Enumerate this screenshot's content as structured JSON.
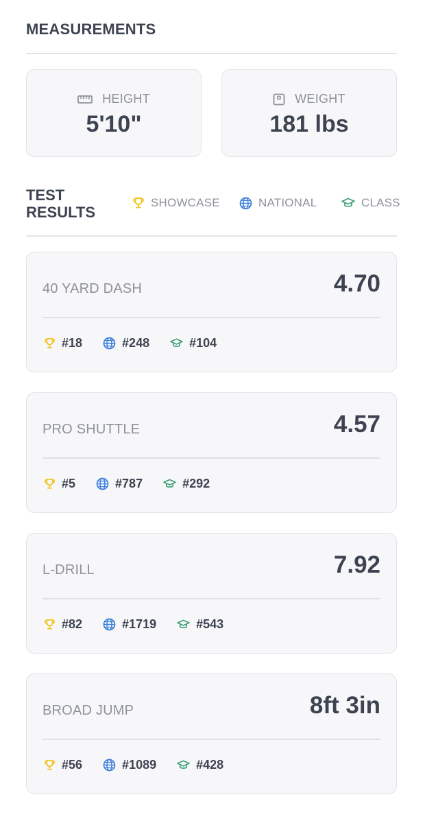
{
  "measurements": {
    "title": "MEASUREMENTS",
    "height": {
      "label": "HEIGHT",
      "value": "5'10\"",
      "icon": "ruler-icon"
    },
    "weight": {
      "label": "WEIGHT",
      "value": "181 lbs",
      "icon": "scale-icon"
    }
  },
  "test_results": {
    "title_line1": "TEST",
    "title_line2": "RESULTS",
    "legend": {
      "showcase": {
        "label": "SHOWCASE",
        "icon": "trophy-icon",
        "color": "#f2c31b"
      },
      "national": {
        "label": "NATIONAL",
        "icon": "globe-icon",
        "color": "#3f7fd9"
      },
      "class": {
        "label": "CLASS",
        "icon": "graduation-cap-icon",
        "color": "#3a9e72"
      }
    },
    "tests": [
      {
        "name": "40 YARD DASH",
        "value": "4.70",
        "showcase": "#18",
        "national": "#248",
        "class": "#104"
      },
      {
        "name": "PRO SHUTTLE",
        "value": "4.57",
        "showcase": "#5",
        "national": "#787",
        "class": "#292"
      },
      {
        "name": "L-DRILL",
        "value": "7.92",
        "showcase": "#82",
        "national": "#1719",
        "class": "#543"
      },
      {
        "name": "BROAD JUMP",
        "value": "8ft 3in",
        "showcase": "#56",
        "national": "#1089",
        "class": "#428"
      }
    ]
  }
}
